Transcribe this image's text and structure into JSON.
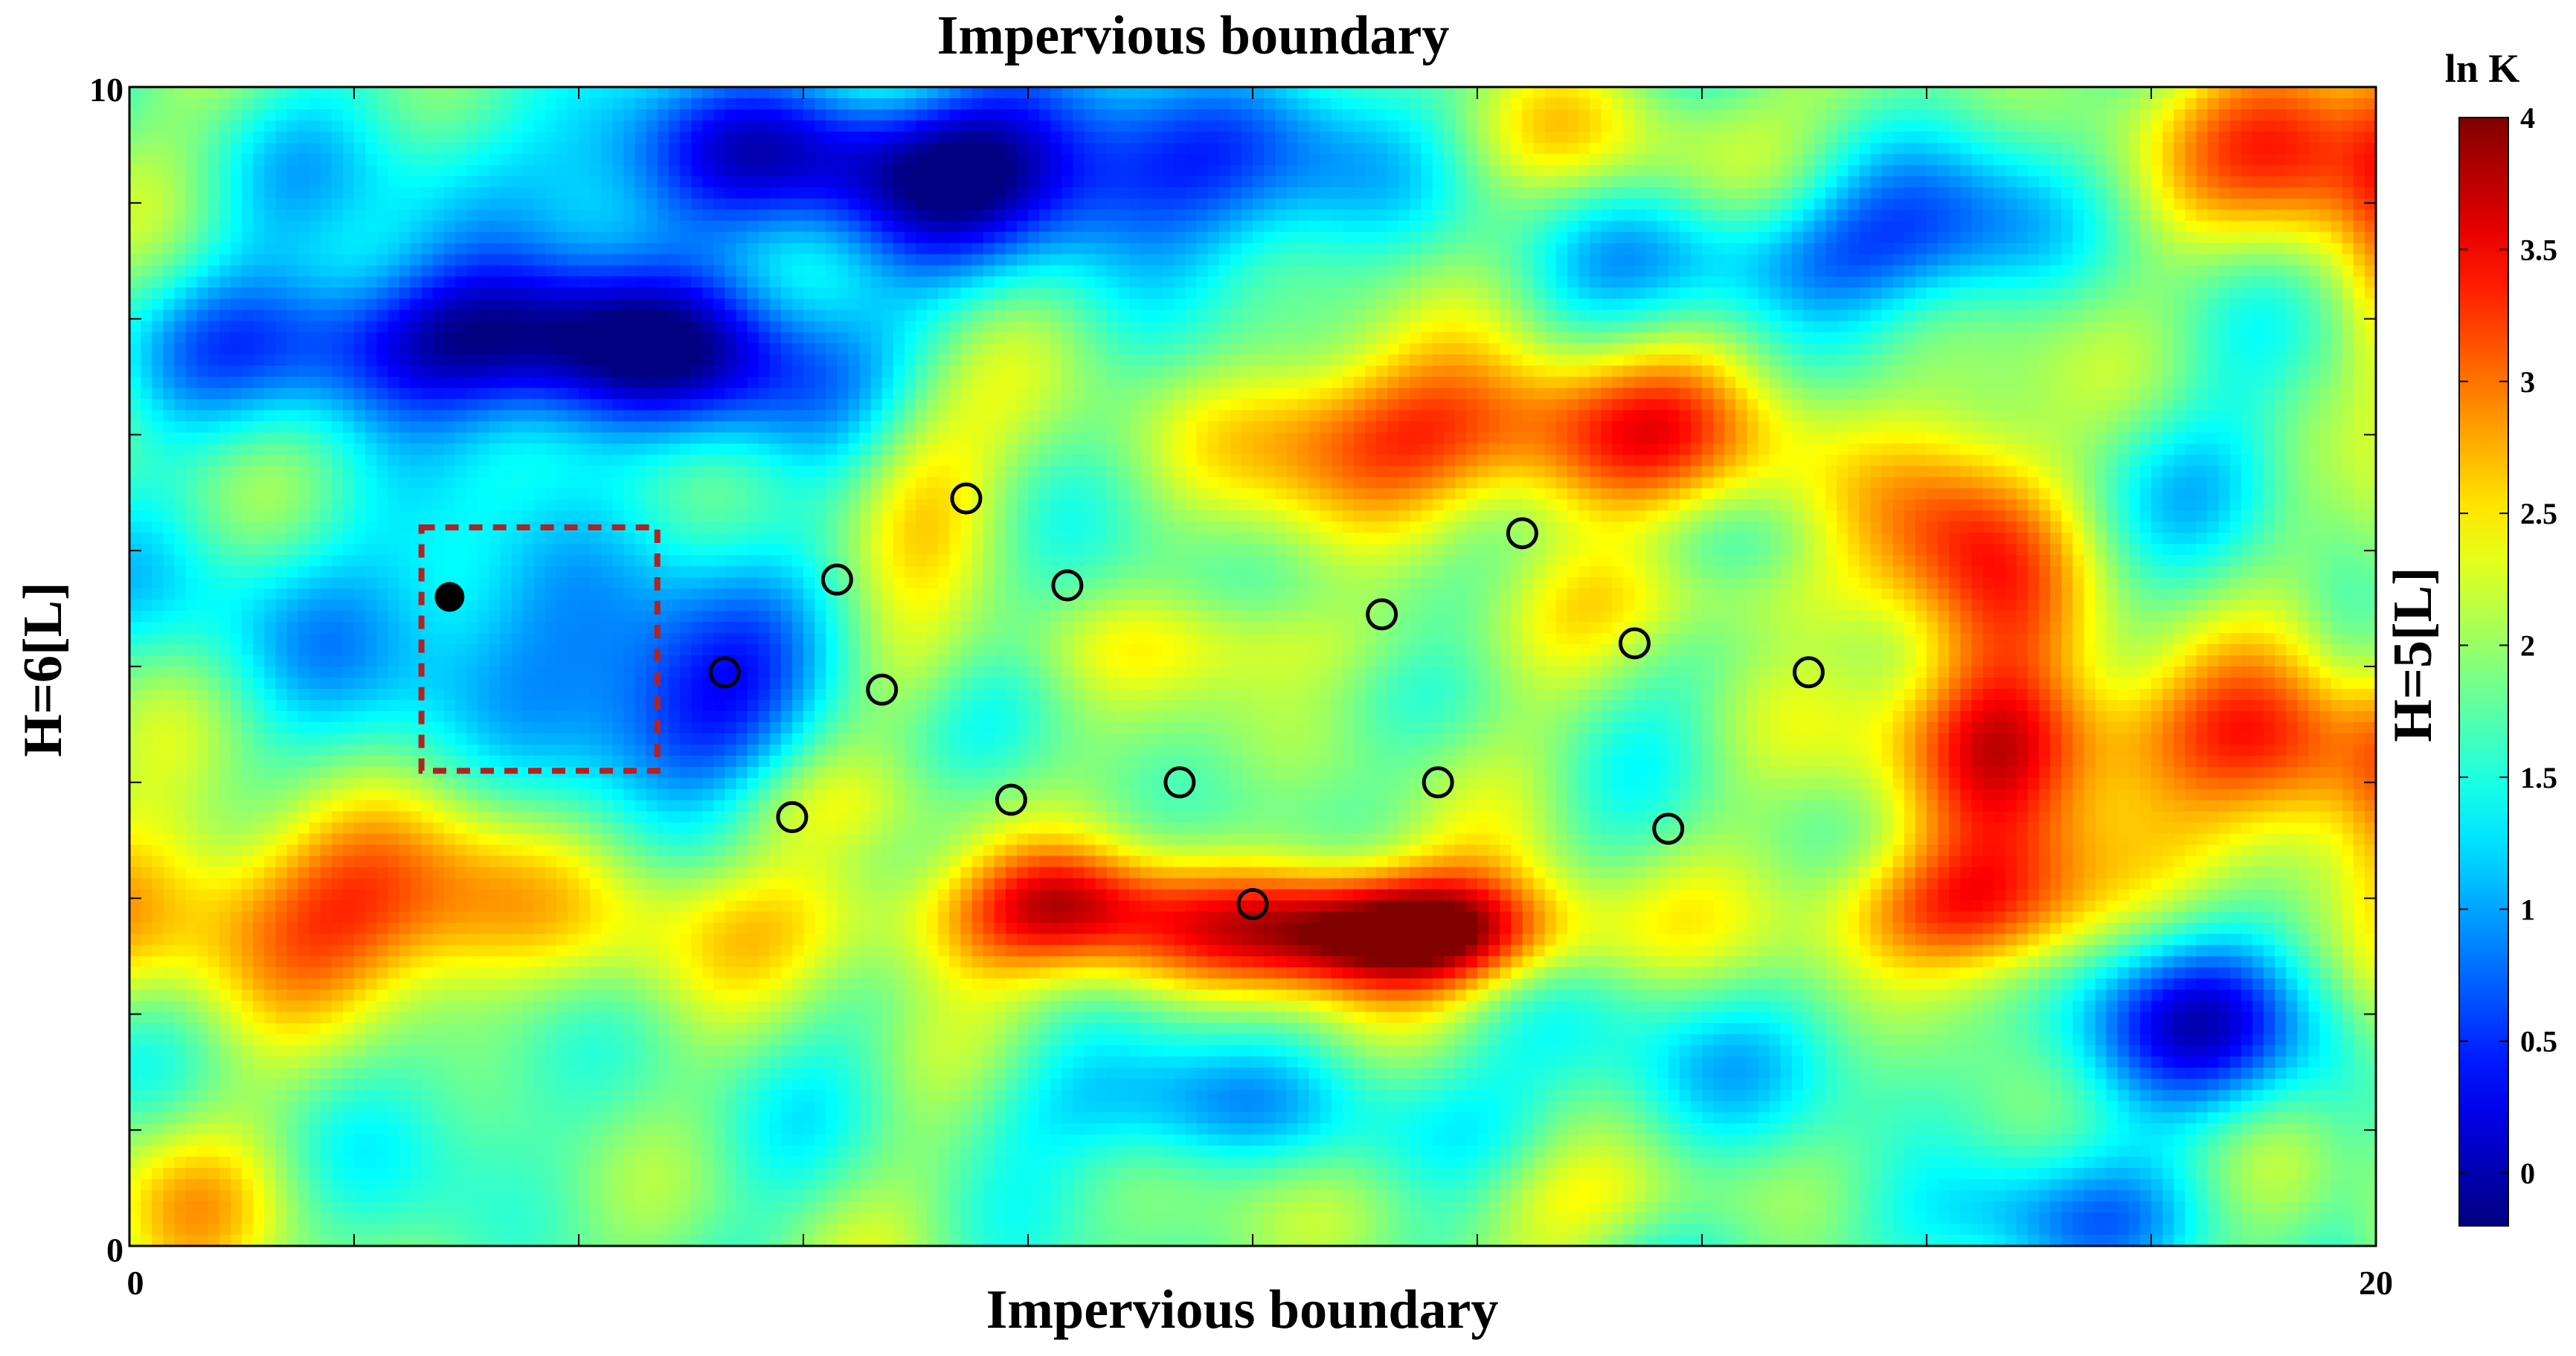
{
  "chart_data": {
    "type": "heatmap",
    "top_label": "Impervious boundary",
    "bottom_label": "Impervious boundary",
    "left_label": "H=6[L]",
    "right_label": "H=5[L]",
    "xlim": [
      0,
      20
    ],
    "ylim": [
      0,
      10
    ],
    "x_ticks": [
      "0",
      "20"
    ],
    "y_ticks": [
      "0",
      "10"
    ],
    "colorbar": {
      "title": "ln K",
      "min": -0.2,
      "max": 4,
      "ticks": [
        "0",
        "0.5",
        "1",
        "1.5",
        "2",
        "2.5",
        "3",
        "3.5",
        "4"
      ],
      "tick_values": [
        0,
        0.5,
        1,
        1.5,
        2,
        2.5,
        3,
        3.5,
        4
      ],
      "colormap": "jet"
    },
    "source_region": {
      "x_min": 2.6,
      "x_max": 4.7,
      "y_min": 4.1,
      "y_max": 6.2,
      "style": "dashed",
      "color": "#b22222"
    },
    "pumping_well": {
      "x": 2.85,
      "y": 5.6
    },
    "monitoring_wells": [
      {
        "x": 5.3,
        "y": 4.95
      },
      {
        "x": 5.9,
        "y": 3.7
      },
      {
        "x": 6.3,
        "y": 5.75
      },
      {
        "x": 6.7,
        "y": 4.8
      },
      {
        "x": 7.45,
        "y": 6.45
      },
      {
        "x": 7.85,
        "y": 3.85
      },
      {
        "x": 8.35,
        "y": 5.7
      },
      {
        "x": 9.35,
        "y": 4.0
      },
      {
        "x": 10.0,
        "y": 2.95
      },
      {
        "x": 11.15,
        "y": 5.45
      },
      {
        "x": 11.65,
        "y": 4.0
      },
      {
        "x": 12.4,
        "y": 6.15
      },
      {
        "x": 13.4,
        "y": 5.2
      },
      {
        "x": 13.7,
        "y": 3.6
      },
      {
        "x": 14.95,
        "y": 4.95
      }
    ],
    "field_features": [
      {
        "x": 2.8,
        "y": 7.8,
        "v": -1.9,
        "sx": 1.6,
        "sy": 0.5
      },
      {
        "x": 5.2,
        "y": 7.6,
        "v": -1.3,
        "sx": 1.0,
        "sy": 0.6
      },
      {
        "x": 8.1,
        "y": 9.3,
        "v": -1.8,
        "sx": 2.0,
        "sy": 0.6
      },
      {
        "x": 5.5,
        "y": 9.4,
        "v": -0.8,
        "sx": 1.2,
        "sy": 0.5
      },
      {
        "x": 2.5,
        "y": 9.2,
        "v": -0.5,
        "sx": 1.2,
        "sy": 0.6
      },
      {
        "x": 3.8,
        "y": 5.2,
        "v": -1.0,
        "sx": 1.3,
        "sy": 0.8
      },
      {
        "x": 5.3,
        "y": 4.6,
        "v": -1.0,
        "sx": 0.8,
        "sy": 0.6
      },
      {
        "x": 1.0,
        "y": 5.6,
        "v": -0.6,
        "sx": 0.9,
        "sy": 0.6
      },
      {
        "x": 1.8,
        "y": 2.9,
        "v": 1.4,
        "sx": 1.6,
        "sy": 0.6
      },
      {
        "x": 0.4,
        "y": 0.5,
        "v": 0.7,
        "sx": 0.8,
        "sy": 0.6
      },
      {
        "x": 9.0,
        "y": 2.8,
        "v": 1.3,
        "sx": 2.3,
        "sy": 0.42
      },
      {
        "x": 11.4,
        "y": 2.7,
        "v": 1.9,
        "sx": 1.0,
        "sy": 0.35
      },
      {
        "x": 16.2,
        "y": 2.9,
        "v": 1.2,
        "sx": 0.8,
        "sy": 0.4
      },
      {
        "x": 16.7,
        "y": 4.3,
        "v": 1.4,
        "sx": 0.6,
        "sy": 1.3
      },
      {
        "x": 19.3,
        "y": 4.1,
        "v": 1.3,
        "sx": 0.8,
        "sy": 0.7
      },
      {
        "x": 12.8,
        "y": 7.0,
        "v": 1.4,
        "sx": 1.6,
        "sy": 0.5
      },
      {
        "x": 10.8,
        "y": 7.0,
        "v": 0.6,
        "sx": 1.0,
        "sy": 0.5
      },
      {
        "x": 16.3,
        "y": 6.2,
        "v": 0.9,
        "sx": 0.7,
        "sy": 0.6
      },
      {
        "x": 19.6,
        "y": 9.5,
        "v": 1.8,
        "sx": 0.9,
        "sy": 0.6
      },
      {
        "x": 13.3,
        "y": 9.6,
        "v": 0.6,
        "sx": 1.0,
        "sy": 0.4
      },
      {
        "x": 7.0,
        "y": 6.7,
        "v": 0.6,
        "sx": 0.5,
        "sy": 0.6
      },
      {
        "x": 7.0,
        "y": 4.9,
        "v": 0.3,
        "sx": 0.4,
        "sy": 0.4
      },
      {
        "x": 6.3,
        "y": 3.8,
        "v": 0.3,
        "sx": 1.0,
        "sy": 0.3
      },
      {
        "x": 17.5,
        "y": 4.4,
        "v": 0.6,
        "sx": 1.5,
        "sy": 0.4
      },
      {
        "x": 18.3,
        "y": 1.9,
        "v": -1.4,
        "sx": 1.1,
        "sy": 0.55
      },
      {
        "x": 14.7,
        "y": 8.5,
        "v": -0.9,
        "sx": 1.2,
        "sy": 0.4
      },
      {
        "x": 16.1,
        "y": 8.9,
        "v": -0.8,
        "sx": 0.9,
        "sy": 0.5
      },
      {
        "x": 18.7,
        "y": 6.6,
        "v": -0.5,
        "sx": 0.9,
        "sy": 0.5
      },
      {
        "x": 13.7,
        "y": 1.5,
        "v": -0.7,
        "sx": 0.8,
        "sy": 0.5
      },
      {
        "x": 17.0,
        "y": 0.2,
        "v": -0.8,
        "sx": 1.3,
        "sy": 0.4
      },
      {
        "x": 9.5,
        "y": 1.2,
        "v": -0.8,
        "sx": 1.4,
        "sy": 0.4
      },
      {
        "x": 8.3,
        "y": 3.0,
        "v": 0.5,
        "sx": 0.5,
        "sy": 0.3
      },
      {
        "x": 14.1,
        "y": 5.6,
        "v": 0.5,
        "sx": 0.9,
        "sy": 0.3
      },
      {
        "x": 10.0,
        "y": 5.2,
        "v": 0.4,
        "sx": 1.5,
        "sy": 0.3
      },
      {
        "x": 2.5,
        "y": 1.1,
        "v": -0.3,
        "sx": 1.8,
        "sy": 0.6
      },
      {
        "x": 13.0,
        "y": 0.4,
        "v": 0.4,
        "sx": 1.2,
        "sy": 0.3
      }
    ],
    "field_base": 1.85,
    "field_ripple_amplitude": 0.32
  }
}
